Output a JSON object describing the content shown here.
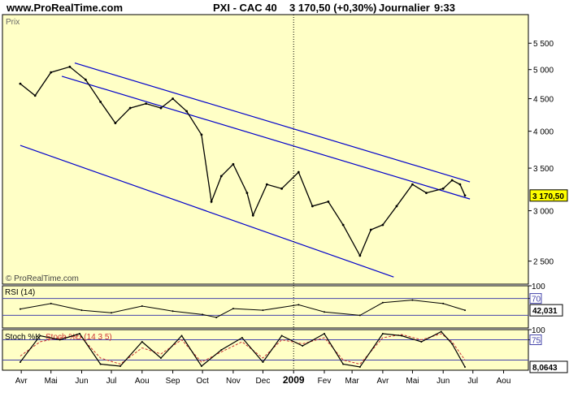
{
  "header": {
    "site": "www.ProRealTime.com",
    "instrument": "PXI - CAC 40",
    "price_change": "3 170,50 (+0,30%)",
    "period": "Journalier",
    "time": "9:33"
  },
  "colors": {
    "panel_bg": "#FFFFC6",
    "border": "#000000",
    "trendline": "#0000CC",
    "guide": "#4444AA",
    "series": "#000000",
    "stoch_signal": "#CC3333"
  },
  "chart_data": [
    {
      "type": "line",
      "panel": "price",
      "label": "Prix",
      "watermark": "© ProRealTime.com",
      "scale": "log",
      "ylim": [
        2300,
        6100
      ],
      "yticks": [
        2500,
        3000,
        3500,
        4000,
        4500,
        5000,
        5500
      ],
      "ytick_labels": [
        "2 500",
        "3 000",
        "3 500",
        "4 000",
        "4 500",
        "5 000",
        "5 500"
      ],
      "x": [
        "2008-03-31",
        "2008-04-15",
        "2008-05-01",
        "2008-05-20",
        "2008-06-05",
        "2008-06-20",
        "2008-07-05",
        "2008-07-20",
        "2008-08-05",
        "2008-08-20",
        "2008-09-01",
        "2008-09-15",
        "2008-09-30",
        "2008-10-10",
        "2008-10-20",
        "2008-11-01",
        "2008-11-15",
        "2008-11-21",
        "2008-12-05",
        "2008-12-20",
        "2009-01-06",
        "2009-01-20",
        "2009-02-05",
        "2009-02-20",
        "2009-03-09",
        "2009-03-20",
        "2009-04-01",
        "2009-04-15",
        "2009-05-01",
        "2009-05-15",
        "2009-06-01",
        "2009-06-10",
        "2009-06-18",
        "2009-06-23"
      ],
      "values": [
        4750,
        4550,
        4950,
        5050,
        4820,
        4450,
        4120,
        4350,
        4420,
        4350,
        4500,
        4300,
        3950,
        3100,
        3400,
        3550,
        3200,
        2950,
        3300,
        3250,
        3450,
        3050,
        3100,
        2850,
        2550,
        2800,
        2850,
        3050,
        3300,
        3200,
        3250,
        3350,
        3300,
        3170
      ],
      "last_value_label": "3 170,50",
      "trendlines": [
        {
          "from": [
            "2008-05-25",
            5120
          ],
          "to": [
            "2009-06-28",
            3330
          ]
        },
        {
          "from": [
            "2008-05-12",
            4880
          ],
          "to": [
            "2009-06-28",
            3130
          ]
        },
        {
          "from": [
            "2008-03-31",
            3800
          ],
          "to": [
            "2009-04-12",
            2360
          ]
        }
      ]
    },
    {
      "type": "line",
      "panel": "rsi",
      "title": "RSI (14)",
      "ylim": [
        0,
        100
      ],
      "guides": [
        30,
        70
      ],
      "right_ticks": [
        100,
        70
      ],
      "x": [
        "2008-03-31",
        "2008-05-01",
        "2008-06-01",
        "2008-07-01",
        "2008-08-01",
        "2008-09-01",
        "2008-10-01",
        "2008-10-15",
        "2008-11-01",
        "2008-12-01",
        "2009-01-06",
        "2009-02-01",
        "2009-03-09",
        "2009-04-01",
        "2009-05-01",
        "2009-06-01",
        "2009-06-23"
      ],
      "values": [
        45,
        58,
        42,
        36,
        52,
        40,
        32,
        25,
        46,
        42,
        55,
        38,
        30,
        60,
        66,
        58,
        42.031
      ],
      "last_value_label": "42,031"
    },
    {
      "type": "line",
      "panel": "stochastic",
      "title_main": "Stoch %K",
      "title_signal": "Stoch %D (14 3 5)",
      "ylim": [
        0,
        100
      ],
      "guides": [
        25,
        75
      ],
      "right_ticks": [
        100,
        75
      ],
      "x": [
        "2008-03-31",
        "2008-04-20",
        "2008-05-10",
        "2008-05-30",
        "2008-06-20",
        "2008-07-10",
        "2008-08-01",
        "2008-08-20",
        "2008-09-10",
        "2008-09-30",
        "2008-10-20",
        "2008-11-10",
        "2008-12-01",
        "2008-12-20",
        "2009-01-10",
        "2009-02-01",
        "2009-02-20",
        "2009-03-09",
        "2009-04-01",
        "2009-04-20",
        "2009-05-10",
        "2009-05-30",
        "2009-06-10",
        "2009-06-23"
      ],
      "k_values": [
        20,
        85,
        75,
        90,
        15,
        10,
        70,
        30,
        85,
        10,
        50,
        80,
        20,
        85,
        60,
        90,
        15,
        8,
        90,
        85,
        70,
        95,
        65,
        8.0643
      ],
      "d_values": [
        35,
        70,
        80,
        85,
        30,
        15,
        55,
        40,
        75,
        20,
        45,
        70,
        30,
        75,
        65,
        80,
        25,
        15,
        80,
        88,
        75,
        90,
        70,
        25
      ],
      "last_value_label": "8,0643"
    }
  ],
  "x_axis": {
    "ticks": [
      {
        "date": "2008-04-01",
        "label": "Avr",
        "bold": false
      },
      {
        "date": "2008-05-01",
        "label": "Mai",
        "bold": false
      },
      {
        "date": "2008-06-01",
        "label": "Jun",
        "bold": false
      },
      {
        "date": "2008-07-01",
        "label": "Jul",
        "bold": false
      },
      {
        "date": "2008-08-01",
        "label": "Aou",
        "bold": false
      },
      {
        "date": "2008-09-01",
        "label": "Sep",
        "bold": false
      },
      {
        "date": "2008-10-01",
        "label": "Oct",
        "bold": false
      },
      {
        "date": "2008-11-01",
        "label": "Nov",
        "bold": false
      },
      {
        "date": "2008-12-01",
        "label": "Dec",
        "bold": false
      },
      {
        "date": "2009-01-01",
        "label": "2009",
        "bold": true
      },
      {
        "date": "2009-02-01",
        "label": "Fev",
        "bold": false
      },
      {
        "date": "2009-03-01",
        "label": "Mar",
        "bold": false
      },
      {
        "date": "2009-04-01",
        "label": "Avr",
        "bold": false
      },
      {
        "date": "2009-05-01",
        "label": "Mai",
        "bold": false
      },
      {
        "date": "2009-06-01",
        "label": "Jun",
        "bold": false
      },
      {
        "date": "2009-07-01",
        "label": "Jul",
        "bold": false
      },
      {
        "date": "2009-08-01",
        "label": "Aou",
        "bold": false
      }
    ],
    "range": [
      "2008-03-13",
      "2009-08-26"
    ]
  }
}
